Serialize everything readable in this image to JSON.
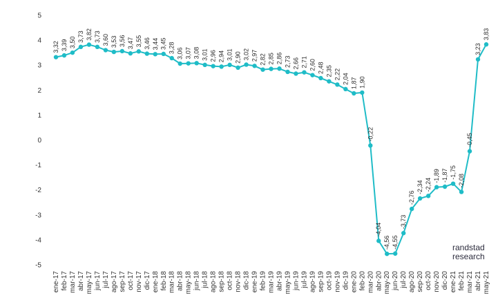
{
  "chart_data": {
    "type": "line",
    "title": "",
    "xlabel": "",
    "ylabel": "",
    "ylim": [
      -5,
      5
    ],
    "yticks": [
      "5",
      "4",
      "3",
      "2",
      "1",
      "0",
      "-1",
      "-2",
      "-3",
      "-4",
      "-5"
    ],
    "grid": false,
    "legend": "none",
    "line_color": "#1fbcc7",
    "x": [
      "ene-17",
      "feb-17",
      "mar-17",
      "abr-17",
      "may-17",
      "jun-17",
      "jul-17",
      "ago-17",
      "sep-17",
      "oct-17",
      "nov-17",
      "dic-17",
      "ene-18",
      "feb-18",
      "mar-18",
      "abr-18",
      "may-18",
      "jun-18",
      "jul-18",
      "ago-18",
      "sep-18",
      "oct-18",
      "nov-18",
      "dic-18",
      "ene-19",
      "feb-19",
      "mar-19",
      "abr-19",
      "may-19",
      "jun-19",
      "jul-19",
      "ago-19",
      "sep-19",
      "oct-19",
      "nov-19",
      "dic-19",
      "ene-20",
      "feb-20",
      "mar-20",
      "abr-20",
      "may-20",
      "jun-20",
      "jul-20",
      "ago-20",
      "sep-20",
      "oct-20",
      "nov-20",
      "dic-20",
      "ene-21",
      "feb-21",
      "mar-21",
      "abr-21",
      "may-21"
    ],
    "values": [
      3.32,
      3.39,
      3.5,
      3.73,
      3.82,
      3.73,
      3.6,
      3.53,
      3.56,
      3.47,
      3.55,
      3.46,
      3.44,
      3.45,
      3.28,
      3.06,
      3.07,
      3.08,
      3.01,
      2.96,
      2.94,
      3.01,
      2.9,
      3.02,
      2.97,
      2.82,
      2.85,
      2.86,
      2.73,
      2.66,
      2.71,
      2.6,
      2.48,
      2.35,
      2.22,
      2.04,
      1.87,
      1.9,
      -0.22,
      -4.04,
      -4.56,
      -4.55,
      -3.73,
      -2.76,
      -2.34,
      -2.24,
      -1.89,
      -1.87,
      -1.75,
      -2.08,
      -0.45,
      3.23,
      3.83
    ],
    "labels": [
      "3,32",
      "3,39",
      "3,50",
      "3,73",
      "3,82",
      "3,73",
      "3,60",
      "3,53",
      "3,56",
      "3,47",
      "3,55",
      "3,46",
      "3,44",
      "3,45",
      "3,28",
      "3,06",
      "3,07",
      "3,08",
      "3,01",
      "2,96",
      "2,94",
      "3,01",
      "2,90",
      "3,02",
      "2,97",
      "2,82",
      "2,85",
      "2,86",
      "2,73",
      "2,66",
      "2,71",
      "2,60",
      "2,48",
      "2,35",
      "2,22",
      "2,04",
      "1,87",
      "1,90",
      "-0,22",
      "-4,04",
      "-4,56",
      "-4,55",
      "-3,73",
      "-2,76",
      "-2,34",
      "-2,24",
      "-1,89",
      "-1,87",
      "-1,75",
      "-2,08",
      "-0,45",
      "3,23",
      "3,83"
    ]
  },
  "watermark": {
    "line1": "randstad",
    "line2": "research"
  }
}
